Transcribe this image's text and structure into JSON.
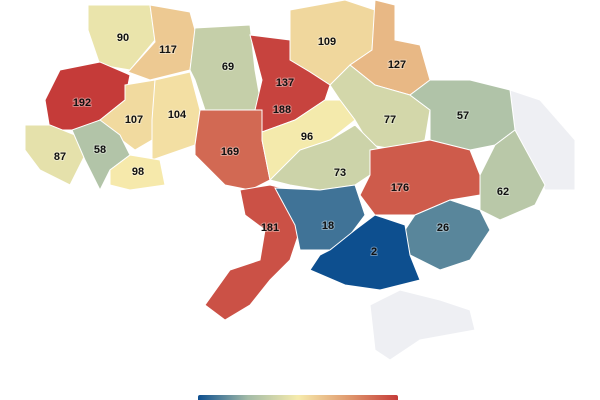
{
  "chart_data": {
    "type": "choropleth",
    "values": [
      90,
      117,
      69,
      109,
      127,
      192,
      107,
      104,
      137,
      188,
      77,
      57,
      87,
      58,
      98,
      169,
      96,
      73,
      62,
      176,
      181,
      18,
      26,
      2
    ],
    "colorscale": [
      "#0d4f8f",
      "#a3bba7",
      "#f6ebac",
      "#e09a6f",
      "#c53b39"
    ],
    "no_data_color": "#eeeff3"
  }
}
